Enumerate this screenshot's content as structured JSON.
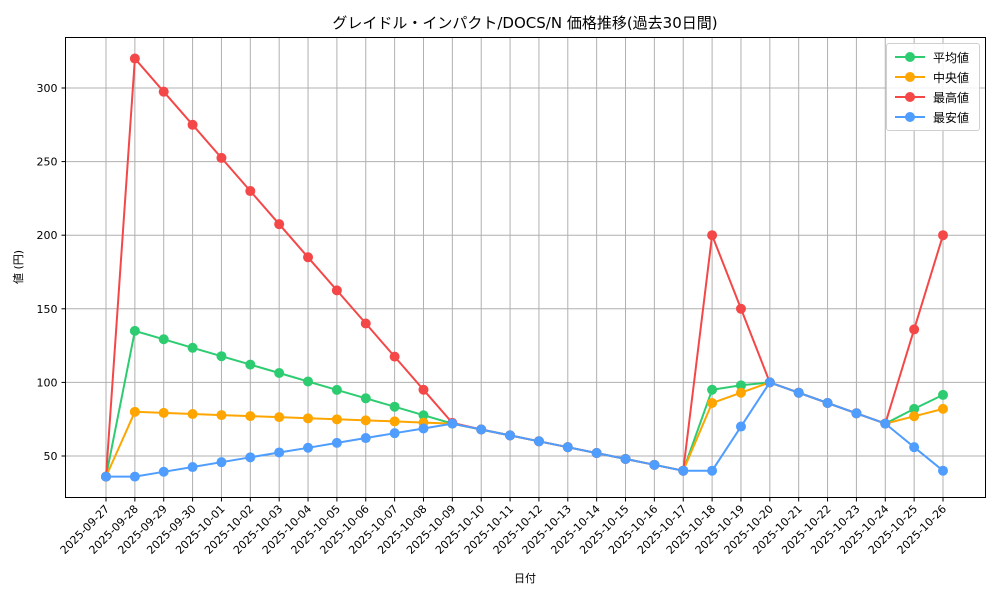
{
  "chart_data": {
    "type": "line",
    "title": "グレイドル・インパクト/DOCS/N 価格推移(過去30日間)",
    "xlabel": "日付",
    "ylabel": "値 (円)",
    "ylim": [
      22,
      332
    ],
    "yticks": [
      50,
      100,
      150,
      200,
      250,
      300
    ],
    "grid": true,
    "legend_position": "upper right",
    "x": [
      "2025-09-27",
      "2025-09-28",
      "2025-09-29",
      "2025-09-30",
      "2025-10-01",
      "2025-10-02",
      "2025-10-03",
      "2025-10-04",
      "2025-10-05",
      "2025-10-06",
      "2025-10-07",
      "2025-10-08",
      "2025-10-09",
      "2025-10-10",
      "2025-10-11",
      "2025-10-12",
      "2025-10-13",
      "2025-10-14",
      "2025-10-15",
      "2025-10-16",
      "2025-10-17",
      "2025-10-18",
      "2025-10-19",
      "2025-10-20",
      "2025-10-21",
      "2025-10-22",
      "2025-10-23",
      "2025-10-24",
      "2025-10-25",
      "2025-10-26"
    ],
    "series": [
      {
        "name": "平均値",
        "color": "#2ecc71",
        "values": [
          36,
          135,
          129.3,
          123.5,
          117.8,
          112.1,
          106.4,
          100.6,
          94.9,
          89.2,
          83.5,
          77.7,
          72,
          68,
          64,
          60,
          56,
          52,
          48,
          44,
          40,
          95,
          98,
          100,
          93,
          86,
          79,
          72,
          82,
          91.5
        ]
      },
      {
        "name": "中央値",
        "color": "#ffa500",
        "values": [
          36,
          80,
          79.3,
          78.5,
          77.8,
          77.1,
          76.4,
          75.6,
          74.9,
          74.2,
          73.5,
          72.7,
          72,
          68,
          64,
          60,
          56,
          52,
          48,
          44,
          40,
          86,
          93,
          100,
          93,
          86,
          79,
          72,
          77,
          82
        ]
      },
      {
        "name": "最高値",
        "color": "#f44747",
        "values": [
          36,
          320,
          297.5,
          275,
          252.5,
          230,
          207.5,
          185,
          162.5,
          140,
          117.5,
          95,
          72.5,
          68,
          64,
          60,
          56,
          52,
          48,
          44,
          40,
          200,
          150,
          100,
          93,
          86,
          79,
          72,
          136,
          200
        ]
      },
      {
        "name": "最安値",
        "color": "#4f9dff",
        "values": [
          36,
          36,
          39.3,
          42.5,
          45.8,
          49.1,
          52.4,
          55.6,
          58.9,
          62.2,
          65.5,
          68.7,
          72,
          68,
          64,
          60,
          56,
          52,
          48,
          44,
          40,
          40,
          70,
          100,
          93,
          86,
          79,
          72,
          56,
          40
        ]
      }
    ]
  }
}
